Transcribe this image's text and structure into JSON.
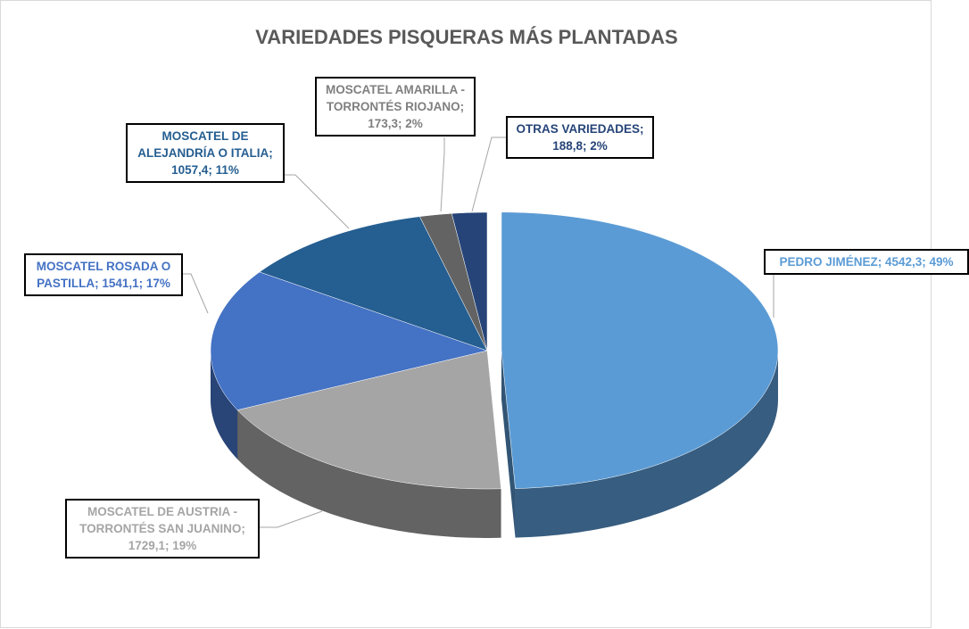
{
  "chart_data": {
    "type": "pie3d",
    "title": "VARIEDADES PISQUERAS MÁS PLANTADAS",
    "labels": [
      "PEDRO JIMÉNEZ; 4542,3; 49%",
      "MOSCATEL DE AUSTRIA - TORRONTÉS SAN JUANINO; 1729,1; 19%",
      "MOSCATEL ROSADA O PASTILLA; 1541,1; 17%",
      "MOSCATEL DE ALEJANDRÍA O ITALIA; 1057,4; 11%",
      "MOSCATEL AMARILLA - TORRONTÉS RIOJANO; 173,3; 2%",
      "OTRAS VARIEDADES; 188,8; 2%"
    ],
    "values": [
      4542.3,
      1729.1,
      1541.1,
      1057.4,
      173.3,
      188.8
    ],
    "colors": [
      "#5b9bd5",
      "#a5a5a5",
      "#4472c4",
      "#255e91",
      "#636363",
      "#264478"
    ],
    "label_colors": [
      "#5b9bd5",
      "#a5a5a5",
      "#4472c4",
      "#255e91",
      "#7f7f7f",
      "#264478"
    ],
    "exploded": [
      true,
      false,
      false,
      false,
      false,
      false
    ]
  }
}
